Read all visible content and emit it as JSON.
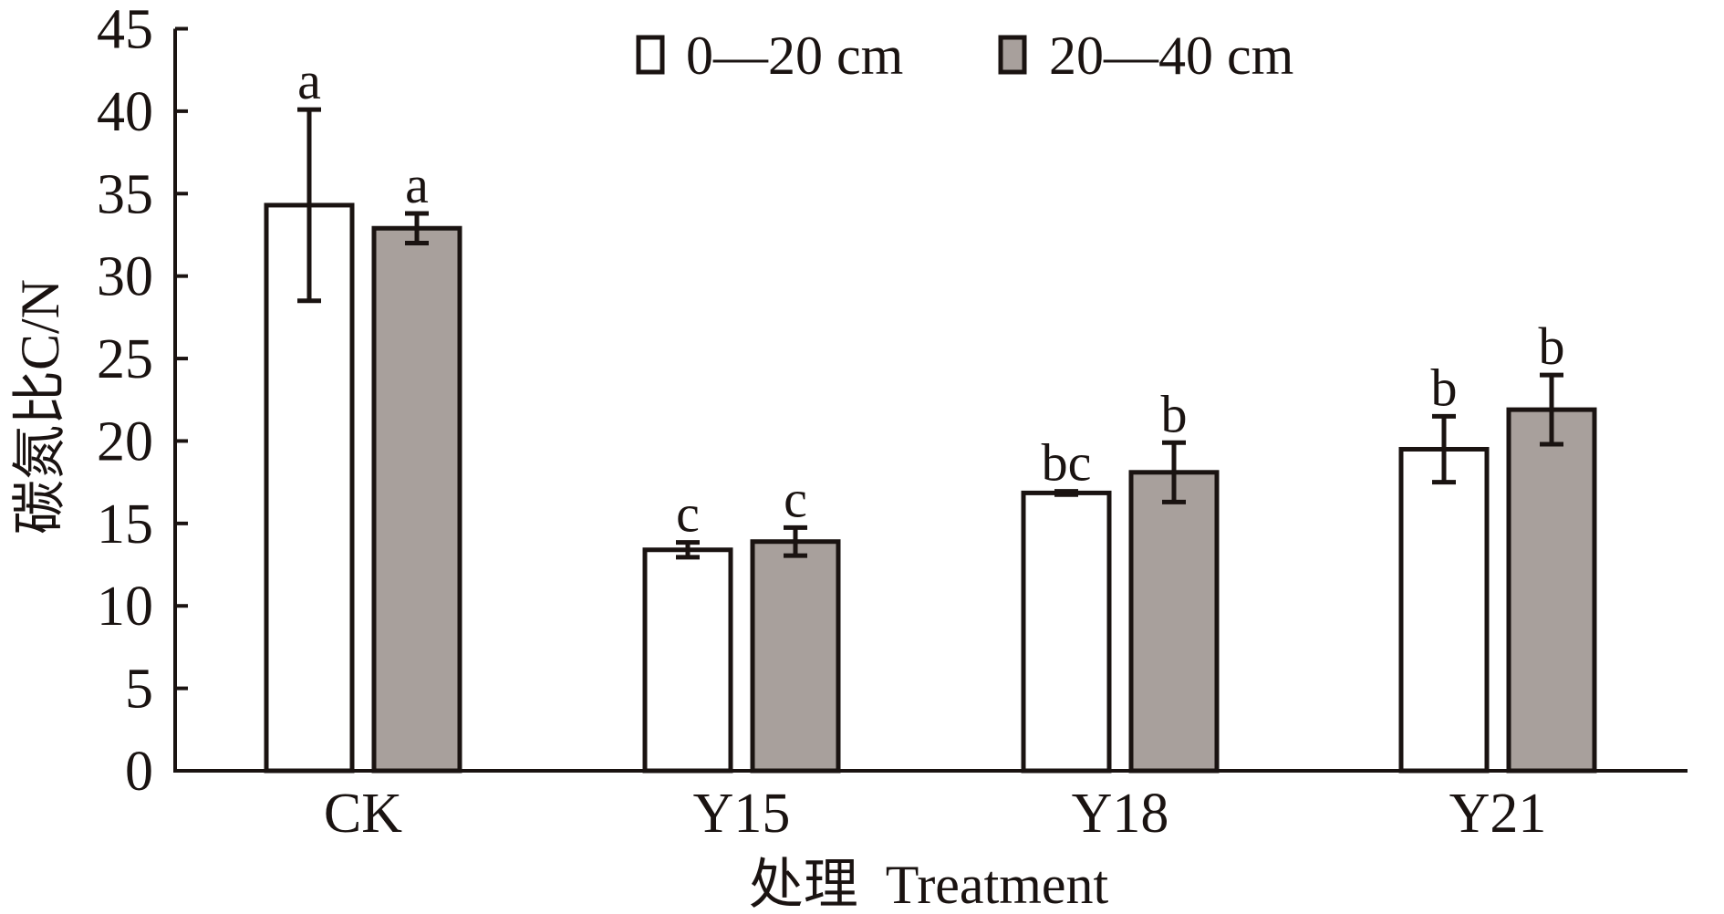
{
  "chart_data": {
    "type": "bar",
    "title": "",
    "xlabel": "处理  Treatment",
    "ylabel": "碳氮比C/N",
    "ylim": [
      0,
      45
    ],
    "yticks": [
      0,
      5,
      10,
      15,
      20,
      25,
      30,
      35,
      40,
      45
    ],
    "grid": false,
    "legend_position": "top-center",
    "categories": [
      "CK",
      "Y15",
      "Y18",
      "Y21"
    ],
    "series": [
      {
        "name": "0—20 cm",
        "color": "#ffffff",
        "values": [
          34.3,
          13.4,
          16.85,
          19.5
        ],
        "errors": [
          5.8,
          0.45,
          0.1,
          2.0
        ],
        "significance": [
          "a",
          "c",
          "bc",
          "b"
        ]
      },
      {
        "name": "20—40 cm",
        "color": "#a8a09c",
        "values": [
          32.9,
          13.9,
          18.1,
          21.9
        ],
        "errors": [
          0.9,
          0.85,
          1.8,
          2.1
        ],
        "significance": [
          "a",
          "c",
          "b",
          "b"
        ]
      }
    ]
  },
  "colors": {
    "ink": "#1a1311",
    "series_1_fill": "#ffffff",
    "series_2_fill": "#a8a09c"
  }
}
